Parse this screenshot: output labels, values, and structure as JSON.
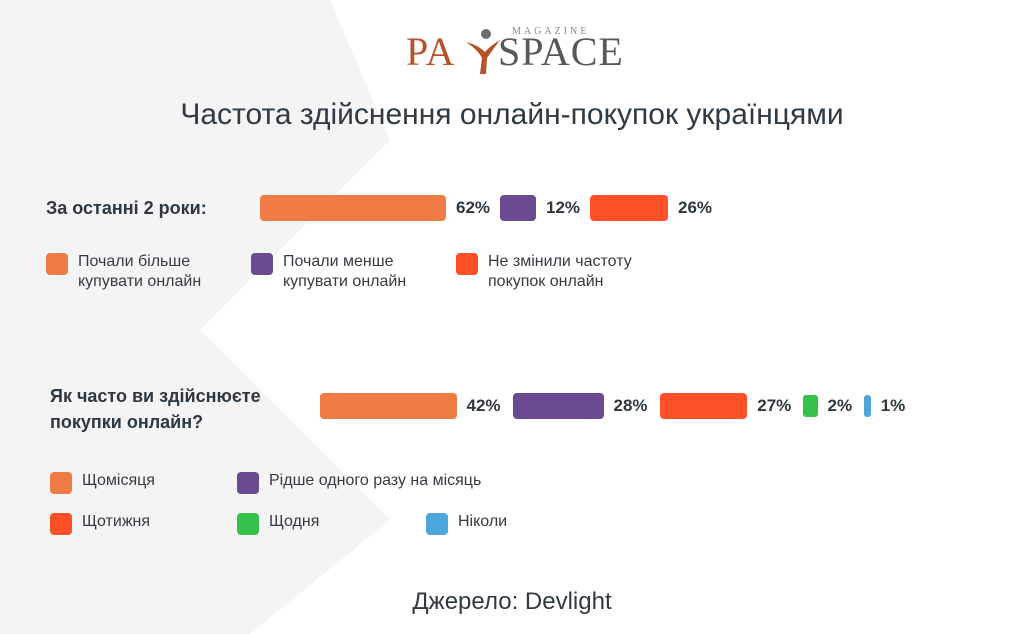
{
  "logo": {
    "brand_left": "PA",
    "brand_right": "SPACE",
    "tagline": "MAGAZINE"
  },
  "title": "Частота здійснення онлайн-покупок українцями",
  "source": "Джерело: Devlight",
  "colors": {
    "orange": "#f07c45",
    "purple": "#6a4a91",
    "red": "#ff5027",
    "green": "#34c24a",
    "blue": "#4da6db"
  },
  "chart_data": [
    {
      "type": "bar",
      "title": "За останні 2 роки:",
      "categories": [
        "Почали більше купувати онлайн",
        "Почали менше купувати онлайн",
        "Не змінили частоту покупок онлайн"
      ],
      "values": [
        62,
        12,
        26
      ],
      "labels": [
        "62%",
        "12%",
        "26%"
      ],
      "legend": [
        "Почали більше\nкупувати онлайн",
        "Почали менше\nкупувати онлайн",
        "Не змінили частоту\nпокупок онлайн"
      ],
      "colors": [
        "#f07c45",
        "#6a4a91",
        "#ff5027"
      ]
    },
    {
      "type": "bar",
      "title": "Як часто ви здійснюєте\nпокупки онлайн?",
      "categories": [
        "Щомісяця",
        "Рідше одного разу на місяць",
        "Щотижня",
        "Щодня",
        "Ніколи"
      ],
      "values": [
        42,
        28,
        27,
        2,
        1
      ],
      "labels": [
        "42%",
        "28%",
        "27%",
        "2%",
        "1%"
      ],
      "legend": [
        "Щомісяця",
        "Рідше одного разу на місяць",
        "Щотижня",
        "Щодня",
        "Ніколи"
      ],
      "colors": [
        "#f07c45",
        "#6a4a91",
        "#ff5027",
        "#34c24a",
        "#4da6db"
      ]
    }
  ]
}
